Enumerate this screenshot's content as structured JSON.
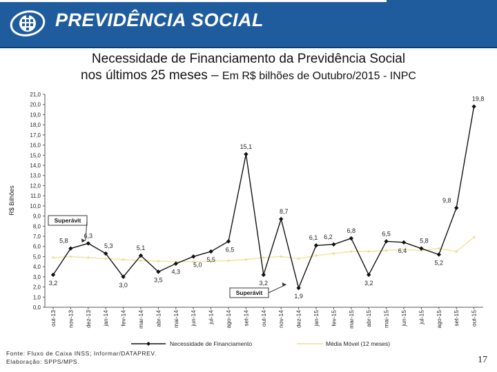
{
  "header": {
    "brand": "PREVIDÊNCIA SOCIAL"
  },
  "slide": {
    "title_line1": "Necessidade de Financiamento da Previdência Social",
    "title_line2": "nos últimos 25 meses –",
    "title_suffix": "Em R$ bilhões de Outubro/2015 - INPC",
    "footer_source": "Fonte: Fluxo de Caixa INSS; Informar/DATAPREV.",
    "footer_credit": "Elaboração: SPPS/MPS.",
    "page_number": "17"
  },
  "chart_data": {
    "type": "line",
    "title": "Necessidade de Financiamento da Previdência Social",
    "ylabel": "R$ Bilhões",
    "xlabel": "",
    "ylim": [
      0,
      21
    ],
    "ytick_step": 1,
    "categories": [
      "out-13",
      "nov-13",
      "dez-13",
      "jan-14",
      "fev-14",
      "mar-14",
      "abr-14",
      "mai-14",
      "jun-14",
      "jul-14",
      "ago-14",
      "set-14",
      "out-14",
      "nov-14",
      "dez-14",
      "jan-15",
      "fev-15",
      "mar-15",
      "abr-15",
      "mai-15",
      "jun-15",
      "jul-15",
      "ago-15",
      "set-15",
      "out-15"
    ],
    "series": [
      {
        "name": "Necessidade de Financiamento",
        "color": "#111111",
        "values": [
          3.2,
          5.8,
          6.3,
          5.3,
          3.0,
          5.1,
          3.5,
          4.3,
          5.0,
          5.5,
          6.5,
          15.1,
          3.2,
          8.7,
          1.9,
          6.1,
          6.2,
          6.8,
          3.2,
          6.5,
          6.4,
          5.8,
          5.2,
          9.8,
          19.8
        ]
      },
      {
        "name": "Média Móvel (12 meses)",
        "color": "#efe7a8",
        "values": [
          4.9,
          5.0,
          4.9,
          4.8,
          4.7,
          4.6,
          4.55,
          4.5,
          4.5,
          4.55,
          4.6,
          4.7,
          4.9,
          5.0,
          4.8,
          5.1,
          5.3,
          5.5,
          5.5,
          5.6,
          5.7,
          5.6,
          5.8,
          5.5,
          6.9
        ]
      }
    ],
    "data_labels": [
      "3,2",
      "5,8",
      "6,3",
      "5,3",
      "3,0",
      "5,1",
      "3,5",
      "4,3",
      "5,0",
      "5,5",
      "6,5",
      "15,1",
      "3,2",
      "8,7",
      "1,9",
      "6,1",
      "6,2",
      "6,8",
      "3,2",
      "6,5",
      "6,4",
      "5,8",
      "5,2",
      "9,8",
      "19,8"
    ],
    "annotations": [
      {
        "text": "Superávit",
        "points_to": "dez-13"
      },
      {
        "text": "Superávit",
        "points_to": "dez-14"
      }
    ],
    "legend_position": "bottom"
  }
}
